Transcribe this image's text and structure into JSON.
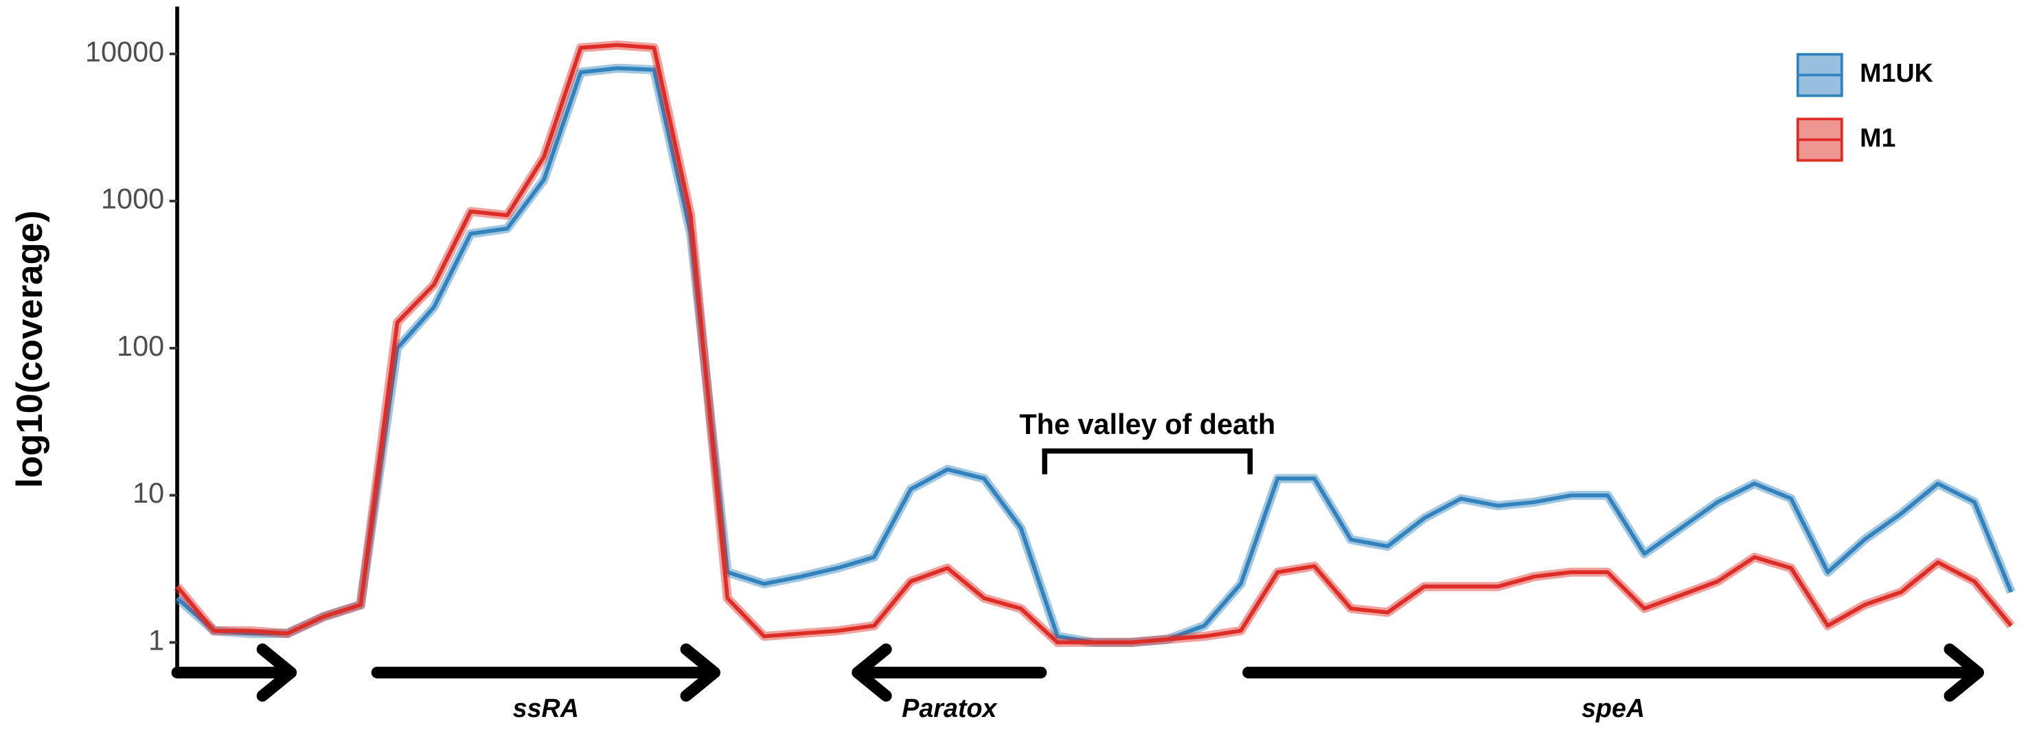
{
  "chart_data": {
    "type": "line",
    "ylabel": "log10(coverage)",
    "log_y": true,
    "grid": false,
    "legend": "top-right",
    "x": [
      0,
      2,
      4,
      6,
      8,
      10,
      12,
      14,
      16,
      18,
      20,
      22,
      24,
      26,
      28,
      30,
      32,
      34,
      36,
      38,
      40,
      42,
      44,
      46,
      48,
      50,
      52,
      54,
      56,
      58,
      60,
      62,
      64,
      66,
      68,
      70,
      72,
      74,
      76,
      78,
      80,
      82,
      84,
      86,
      88,
      90,
      92,
      94,
      96,
      98,
      100
    ],
    "xlim": [
      0,
      100
    ],
    "ylim": [
      0.65,
      21000
    ],
    "yticks": [
      1,
      10,
      100,
      1000,
      10000
    ],
    "series": [
      {
        "name": "M1UK",
        "color": "#3182bd",
        "values": [
          2.0,
          1.2,
          1.15,
          1.15,
          1.5,
          1.8,
          100,
          190,
          600,
          650,
          1400,
          7500,
          8000,
          7800,
          600,
          3,
          2.5,
          2.8,
          3.2,
          3.8,
          11,
          15,
          13,
          6,
          1.1,
          1.0,
          1.0,
          1.05,
          1.3,
          2.5,
          13,
          13,
          5,
          4.5,
          7,
          9.5,
          8.5,
          9,
          10,
          10,
          4,
          6,
          9,
          12,
          9.5,
          3,
          5,
          7.5,
          12,
          9,
          2.2
        ]
      },
      {
        "name": "M1",
        "color": "#de2d26",
        "values": [
          2.4,
          1.2,
          1.2,
          1.15,
          1.5,
          1.8,
          150,
          270,
          850,
          800,
          2000,
          11000,
          11500,
          11000,
          800,
          2,
          1.1,
          1.15,
          1.2,
          1.3,
          2.6,
          3.2,
          2.0,
          1.7,
          1.0,
          1.0,
          1.0,
          1.05,
          1.1,
          1.2,
          3.0,
          3.3,
          1.7,
          1.6,
          2.4,
          2.4,
          2.4,
          2.8,
          3.0,
          3.0,
          1.7,
          2.1,
          2.6,
          3.8,
          3.2,
          1.3,
          1.8,
          2.2,
          3.5,
          2.6,
          1.3
        ]
      }
    ],
    "genes": [
      {
        "start": 0,
        "end": 6.2
      },
      {
        "label": "ssRA",
        "start": 10.9,
        "end": 29.3
      },
      {
        "label": "Paratox",
        "start": 47.1,
        "end": 37.1
      },
      {
        "label": "speA",
        "start": 58.4,
        "end": 98.2
      }
    ],
    "annotation": {
      "text": "The valley of death",
      "x_start": 47.3,
      "x_end": 58.5,
      "y": 20
    }
  }
}
